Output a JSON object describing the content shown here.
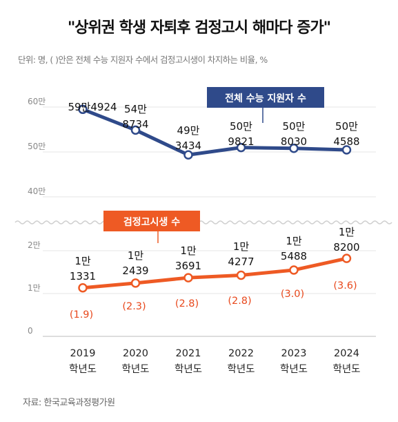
{
  "title": "\"상위권 학생 자퇴후 검정고시 해마다 증가\"",
  "subtitle": "단위: 명, ( )안은 전체 수능 지원자 수에서 검정고시생이 차지하는 비율, %",
  "source": "자료: 한국교육과정평가원",
  "colors": {
    "total": "#2f4a8a",
    "ged": "#ee5a24",
    "ged_pct": "#e8491d"
  },
  "chart_data": {
    "type": "line",
    "broken_y_axis": true,
    "y_ticks": [
      "60만",
      "50만",
      "40만",
      "2만",
      "1만",
      "0"
    ],
    "x": [
      "2019",
      "2020",
      "2021",
      "2022",
      "2023",
      "2024"
    ],
    "x_sublabel": "학년도",
    "series": [
      {
        "name": "전체 수능 지원자 수",
        "values": [
          594924,
          548734,
          493434,
          509821,
          508030,
          504588
        ],
        "value_labels": [
          [
            "59만4924"
          ],
          [
            "54만",
            "8734"
          ],
          [
            "49만",
            "3434"
          ],
          [
            "50만",
            "9821"
          ],
          [
            "50만",
            "8030"
          ],
          [
            "50만",
            "4588"
          ]
        ]
      },
      {
        "name": "검정고시생 수",
        "values": [
          11331,
          12439,
          13691,
          14277,
          15488,
          18200
        ],
        "value_labels": [
          [
            "1만",
            "1331"
          ],
          [
            "1만",
            "2439"
          ],
          [
            "1만",
            "3691"
          ],
          [
            "1만",
            "4277"
          ],
          [
            "1만",
            "5488"
          ],
          [
            "1만",
            "8200"
          ]
        ],
        "pct_labels": [
          "(1.9)",
          "(2.3)",
          "(2.8)",
          "(2.8)",
          "(3.0)",
          "(3.6)"
        ]
      }
    ]
  }
}
